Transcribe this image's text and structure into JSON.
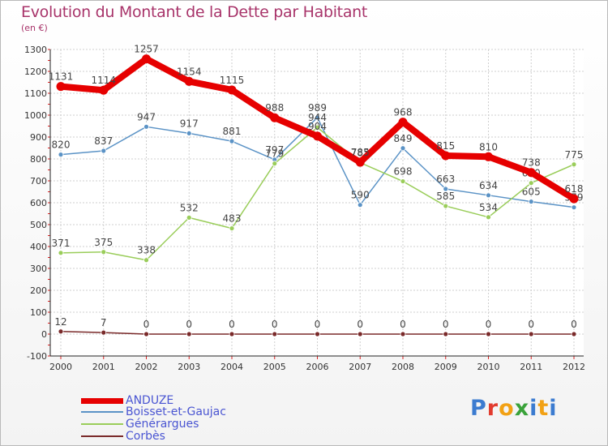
{
  "chart_data": {
    "type": "line",
    "title": "Evolution du Montant de la Dette par Habitant",
    "subtitle": "(en €)",
    "x": [
      "2000",
      "2001",
      "2002",
      "2003",
      "2004",
      "2005",
      "2006",
      "2007",
      "2008",
      "2009",
      "2010",
      "2011",
      "2012"
    ],
    "y_ticks": [
      -100,
      0,
      100,
      200,
      300,
      400,
      500,
      600,
      700,
      800,
      900,
      1000,
      1100,
      1200,
      1300
    ],
    "ylim": [
      -100,
      1300
    ],
    "grid": true,
    "legend_position": "bottom-left",
    "series": [
      {
        "name": "Boisset-et-Gaujac",
        "color": "#5b93c6",
        "values": [
          820,
          837,
          947,
          917,
          881,
          797,
          989,
          590,
          849,
          663,
          634,
          605,
          579
        ]
      },
      {
        "name": "Générargues",
        "color": "#9acd5a",
        "values": [
          371,
          375,
          338,
          532,
          483,
          779,
          944,
          783,
          698,
          585,
          534,
          690,
          775
        ]
      },
      {
        "name": "Corbès",
        "color": "#7a2a2a",
        "values": [
          12,
          7,
          0,
          0,
          0,
          0,
          0,
          0,
          0,
          0,
          0,
          0,
          0
        ]
      },
      {
        "name": "ANDUZE",
        "color": "#e60000",
        "values": [
          1131,
          1114,
          1257,
          1154,
          1115,
          988,
          904,
          785,
          968,
          815,
          810,
          738,
          618
        ]
      }
    ]
  },
  "logo": {
    "text": "Proxiti",
    "colors": [
      "#3b7bd0",
      "#e23b2e",
      "#f2a114",
      "#3aa23a",
      "#3b7bd0",
      "#f2a114",
      "#3b7bd0"
    ]
  }
}
